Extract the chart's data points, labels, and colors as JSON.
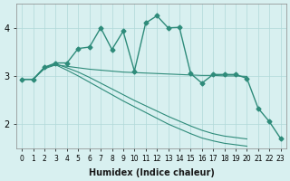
{
  "x": [
    0,
    1,
    2,
    3,
    4,
    5,
    6,
    7,
    8,
    9,
    10,
    11,
    12,
    13,
    14,
    15,
    16,
    17,
    18,
    19,
    20,
    21,
    22,
    23
  ],
  "line_main": [
    2.93,
    2.93,
    3.18,
    3.27,
    3.27,
    3.57,
    3.6,
    4.0,
    3.55,
    3.93,
    3.1,
    4.1,
    4.25,
    4.0,
    4.01,
    3.05,
    2.85,
    3.03,
    3.03,
    3.03,
    2.95,
    2.33,
    2.05,
    1.7
  ],
  "line_flat": [
    2.93,
    2.93,
    3.18,
    3.23,
    3.2,
    3.17,
    3.14,
    3.12,
    3.1,
    3.08,
    3.07,
    3.06,
    3.05,
    3.04,
    3.03,
    3.02,
    3.01,
    3.01,
    3.0,
    3.0,
    2.99
  ],
  "line_diag1": [
    2.93,
    2.93,
    3.15,
    3.23,
    3.12,
    3.0,
    2.87,
    2.74,
    2.61,
    2.48,
    2.36,
    2.24,
    2.12,
    2.0,
    1.9,
    1.8,
    1.71,
    1.65,
    1.6,
    1.57,
    1.54
  ],
  "line_diag2": [
    2.93,
    2.93,
    3.18,
    3.25,
    3.17,
    3.08,
    2.97,
    2.85,
    2.73,
    2.61,
    2.49,
    2.38,
    2.27,
    2.16,
    2.06,
    1.96,
    1.87,
    1.8,
    1.75,
    1.72,
    1.69
  ],
  "color": "#2e8b7a",
  "bg_color": "#d8f0f0",
  "grid_color": "#b0d8d8",
  "xlabel": "Humidex (Indice chaleur)",
  "ylim": [
    1.5,
    4.5
  ],
  "yticks": [
    2,
    3,
    4
  ],
  "xticks": [
    0,
    1,
    2,
    3,
    4,
    5,
    6,
    7,
    8,
    9,
    10,
    11,
    12,
    13,
    14,
    15,
    16,
    17,
    18,
    19,
    20,
    21,
    22,
    23
  ],
  "flat_x": [
    0,
    1,
    2,
    3,
    4,
    5,
    6,
    7,
    8,
    9,
    10,
    11,
    12,
    13,
    14,
    15,
    16,
    17,
    18,
    19,
    20
  ],
  "diag_x": [
    0,
    1,
    2,
    3,
    4,
    5,
    6,
    7,
    8,
    9,
    10,
    11,
    12,
    13,
    14,
    15,
    16,
    17,
    18,
    19,
    20
  ]
}
